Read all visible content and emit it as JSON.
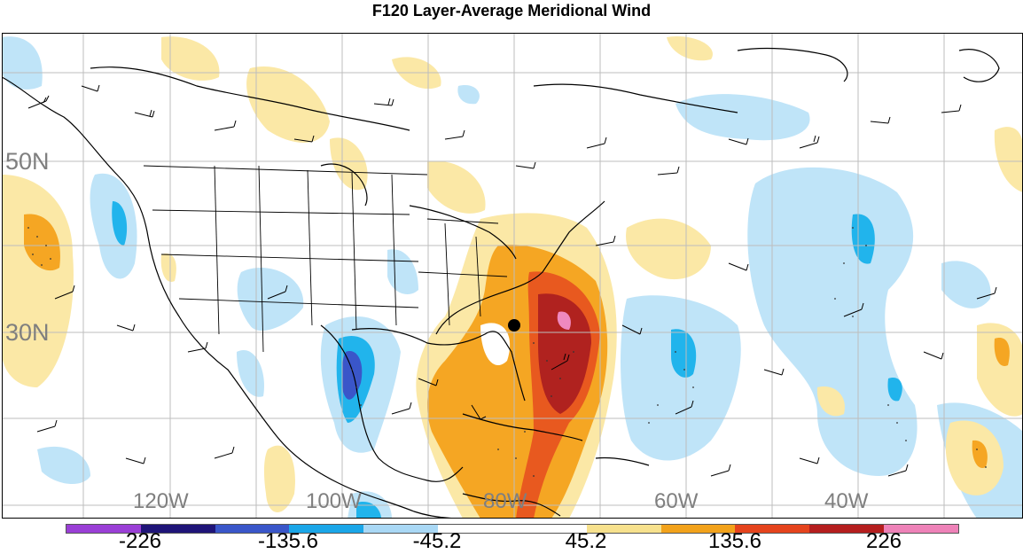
{
  "title": "F120 Layer-Average Meridional Wind",
  "lat_labels": [
    "50N",
    "30N"
  ],
  "lon_labels": [
    "120W",
    "100W",
    "80W",
    "60W",
    "40W"
  ],
  "colorbar": {
    "colors": [
      "#9a3fd6",
      "#1f1478",
      "#3a56c9",
      "#1aa6e8",
      "#a9d8f5",
      "#ffffff",
      "#ffffff",
      "#f7e18d",
      "#f2a21b",
      "#e5441d",
      "#b51e1e",
      "#ee82b8"
    ],
    "labels": [
      "-226",
      "-135.6",
      "-45.2",
      "45.2",
      "135.6",
      "226"
    ]
  },
  "colors": {
    "neg_light": "#bfe4f8",
    "neg_mid": "#21b4ec",
    "neg_deep": "#3a56c9",
    "pos_light": "#fbe8a6",
    "pos_mid": "#f5a623",
    "pos_deep": "#e8591f",
    "pos_max": "#b0221f",
    "pos_peak": "#ef89bf",
    "land_outline": "#000000",
    "grid": "#bdbdbd"
  }
}
